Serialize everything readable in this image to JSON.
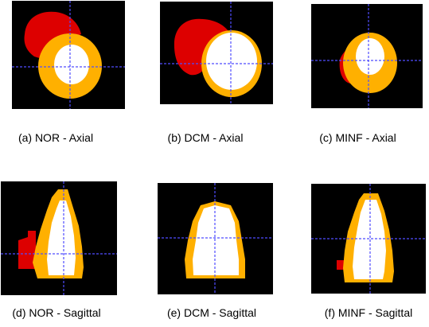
{
  "figure": {
    "panels": [
      {
        "caption": "(a) NOR - Axial",
        "view": "axial",
        "group": "NOR"
      },
      {
        "caption": "(b) DCM - Axial",
        "view": "axial",
        "group": "DCM"
      },
      {
        "caption": "(c) MINF - Axial",
        "view": "axial",
        "group": "MINF"
      },
      {
        "caption": "(d) NOR - Sagittal",
        "view": "sagittal",
        "group": "NOR"
      },
      {
        "caption": "(e) DCM - Sagittal",
        "view": "sagittal",
        "group": "DCM"
      },
      {
        "caption": "(f) MINF - Sagittal",
        "view": "sagittal",
        "group": "MINF"
      }
    ],
    "colors": {
      "background": "#000000",
      "segment_red": "#dd0000",
      "segment_orange": "#ffb000",
      "segment_white": "#ffffff",
      "crosshair": "#4f4cff"
    }
  }
}
